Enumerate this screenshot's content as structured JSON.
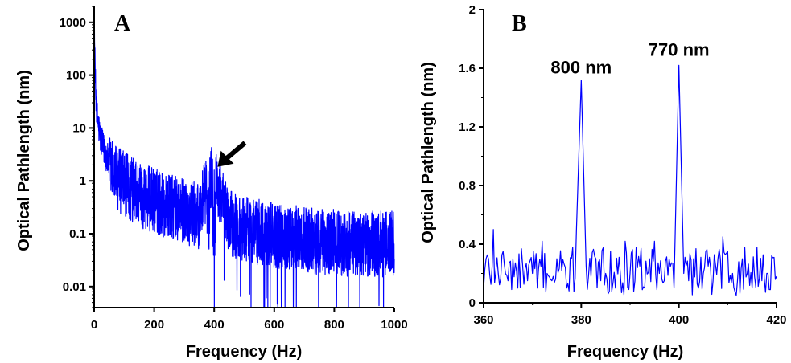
{
  "chart_data": [
    {
      "panel": "A",
      "type": "line",
      "xlabel": "Frequency (Hz)",
      "ylabel": "Optical Pathlength (nm)",
      "xlim": [
        0,
        1000
      ],
      "ylim": [
        0.004,
        2000
      ],
      "y_scale": "log",
      "x_ticks": [
        0,
        200,
        400,
        600,
        800,
        1000
      ],
      "x_tick_labels": [
        "0",
        "200",
        "400",
        "600",
        "800",
        "1000"
      ],
      "y_ticks": [
        0.01,
        0.1,
        1,
        10,
        100,
        1000
      ],
      "y_tick_labels": [
        "0.01",
        "0.1",
        "1",
        "10",
        "100",
        "1000"
      ],
      "grid": false,
      "annotation": {
        "type": "arrow",
        "points_to": [
          390,
          1.6
        ]
      },
      "series": [
        {
          "color": "#0000ff",
          "x": [
            0,
            2,
            5,
            10,
            20,
            30,
            50,
            75,
            100,
            150,
            200,
            250,
            300,
            350,
            380,
            400,
            450,
            500,
            550,
            600,
            650,
            700,
            750,
            800,
            850,
            900,
            950,
            1000
          ],
          "y": [
            1500,
            300,
            60,
            20,
            8,
            5,
            2.6,
            1.7,
            1.2,
            0.8,
            0.6,
            0.45,
            0.38,
            0.3,
            1.5,
            1.6,
            0.22,
            0.18,
            0.15,
            0.13,
            0.12,
            0.11,
            0.1,
            0.1,
            0.09,
            0.09,
            0.09,
            0.09
          ]
        }
      ]
    },
    {
      "panel": "B",
      "type": "line",
      "xlabel": "Frequency (Hz)",
      "ylabel": "Optical Pathlength (nm)",
      "xlim": [
        360,
        420
      ],
      "ylim": [
        0,
        2
      ],
      "x_ticks": [
        360,
        380,
        400,
        420
      ],
      "x_tick_labels": [
        "360",
        "380",
        "400",
        "420"
      ],
      "y_ticks": [
        0,
        0.4,
        0.8,
        1.2,
        1.6,
        2
      ],
      "y_tick_labels": [
        "0",
        "0.4",
        "0.8",
        "1.2",
        "1.6",
        "2"
      ],
      "grid": false,
      "annotations": [
        {
          "text": "800 nm",
          "x": 380,
          "y": 1.52
        },
        {
          "text": "770 nm",
          "x": 400,
          "y": 1.62
        }
      ],
      "series": [
        {
          "color": "#0000ff",
          "x": [
            360,
            361,
            362,
            363,
            364,
            365,
            366,
            367,
            368,
            369,
            370,
            371,
            372,
            373,
            374,
            375,
            376,
            377,
            378,
            379,
            380,
            381,
            382,
            383,
            384,
            385,
            386,
            387,
            388,
            389,
            390,
            391,
            392,
            393,
            394,
            395,
            396,
            397,
            398,
            399,
            400,
            401,
            402,
            403,
            404,
            405,
            406,
            407,
            408,
            409,
            410,
            411,
            412,
            413,
            414,
            415,
            416,
            417,
            418,
            419,
            420
          ],
          "y": [
            0.1,
            0.3,
            0.5,
            0.2,
            0.35,
            0.15,
            0.3,
            0.1,
            0.25,
            0.15,
            0.2,
            0.1,
            0.42,
            0.2,
            0.15,
            0.3,
            0.22,
            0.1,
            0.3,
            0.48,
            1.52,
            0.25,
            0.18,
            0.3,
            0.15,
            0.2,
            0.35,
            0.1,
            0.2,
            0.42,
            0.2,
            0.15,
            0.25,
            0.1,
            0.3,
            0.42,
            0.2,
            0.15,
            0.3,
            0.1,
            1.62,
            0.2,
            0.15,
            0.3,
            0.1,
            0.2,
            0.25,
            0.15,
            0.3,
            0.45,
            0.35,
            0.2,
            0.15,
            0.3,
            0.2,
            0.1,
            0.38,
            0.15,
            0.2,
            0.32,
            0.18
          ]
        }
      ]
    }
  ]
}
